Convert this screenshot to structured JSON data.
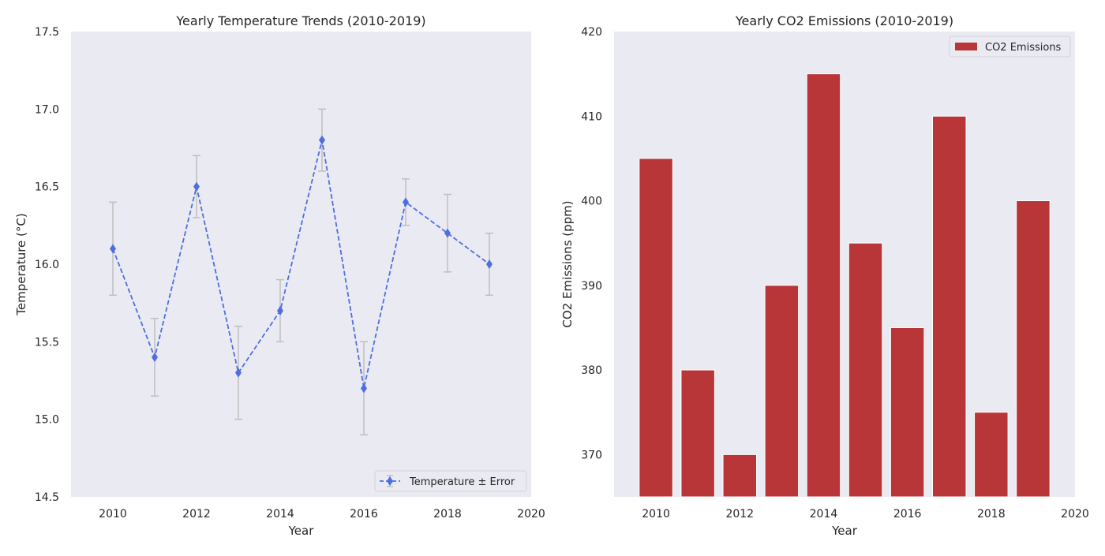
{
  "chart_data": [
    {
      "type": "line",
      "title": "Yearly Temperature Trends (2010-2019)",
      "xlabel": "Year",
      "ylabel": "Temperature (°C)",
      "xlim": [
        2009,
        2020
      ],
      "ylim": [
        14.5,
        17.5
      ],
      "xticks": [
        "2010",
        "2012",
        "2014",
        "2016",
        "2018",
        "2020"
      ],
      "yticks": [
        "14.5",
        "15.0",
        "15.5",
        "16.0",
        "16.5",
        "17.0",
        "17.5"
      ],
      "grid": false,
      "legend_position": "lower-right",
      "series": [
        {
          "name": "Temperature ± Error",
          "color": "#4f6fdf",
          "marker": "diamond",
          "linestyle": "dashed",
          "x": [
            2010,
            2011,
            2012,
            2013,
            2014,
            2015,
            2016,
            2017,
            2018,
            2019
          ],
          "y": [
            16.1,
            15.4,
            16.5,
            15.3,
            15.7,
            16.8,
            15.2,
            16.4,
            16.2,
            16.0
          ],
          "error": [
            0.3,
            0.25,
            0.2,
            0.3,
            0.2,
            0.2,
            0.3,
            0.15,
            0.25,
            0.2
          ],
          "error_color": "#bfbfbf"
        }
      ]
    },
    {
      "type": "bar",
      "title": "Yearly CO2 Emissions (2010-2019)",
      "xlabel": "Year",
      "ylabel": "CO2 Emissions (ppm)",
      "xlim": [
        2009,
        2020
      ],
      "ylim": [
        365,
        420
      ],
      "xticks": [
        "2010",
        "2012",
        "2014",
        "2016",
        "2018",
        "2020"
      ],
      "yticks": [
        "370",
        "380",
        "390",
        "400",
        "410",
        "420"
      ],
      "grid": false,
      "legend_position": "top-right",
      "series": [
        {
          "name": "CO2 Emissions",
          "color": "#b83538",
          "x": [
            2010,
            2011,
            2012,
            2013,
            2014,
            2015,
            2016,
            2017,
            2018,
            2019
          ],
          "values": [
            405,
            380,
            370,
            390,
            415,
            395,
            385,
            410,
            375,
            400
          ]
        }
      ]
    }
  ],
  "colors": {
    "plot_background": "#eaeaf2",
    "bar_edge": "#ffffff"
  }
}
